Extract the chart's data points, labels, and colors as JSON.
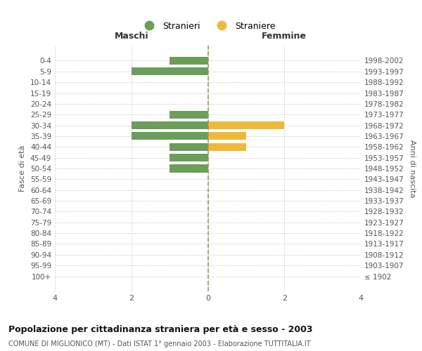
{
  "age_groups": [
    "0-4",
    "5-9",
    "10-14",
    "15-19",
    "20-24",
    "25-29",
    "30-34",
    "35-39",
    "40-44",
    "45-49",
    "50-54",
    "55-59",
    "60-64",
    "65-69",
    "70-74",
    "75-79",
    "80-84",
    "85-89",
    "90-94",
    "95-99",
    "100+"
  ],
  "birth_years": [
    "1998-2002",
    "1993-1997",
    "1988-1992",
    "1983-1987",
    "1978-1982",
    "1973-1977",
    "1968-1972",
    "1963-1967",
    "1958-1962",
    "1953-1957",
    "1948-1952",
    "1943-1947",
    "1938-1942",
    "1933-1937",
    "1928-1932",
    "1923-1927",
    "1918-1922",
    "1913-1917",
    "1908-1912",
    "1903-1907",
    "≤ 1902"
  ],
  "males": [
    1,
    2,
    0,
    0,
    0,
    1,
    2,
    2,
    1,
    1,
    1,
    0,
    0,
    0,
    0,
    0,
    0,
    0,
    0,
    0,
    0
  ],
  "females": [
    0,
    0,
    0,
    0,
    0,
    0,
    2,
    1,
    1,
    0,
    0,
    0,
    0,
    0,
    0,
    0,
    0,
    0,
    0,
    0,
    0
  ],
  "male_color": "#6a9e5a",
  "female_color": "#f0b83a",
  "xlim": 4,
  "title": "Popolazione per cittadinanza straniera per età e sesso - 2003",
  "subtitle": "COMUNE DI MIGLIONICO (MT) - Dati ISTAT 1° gennaio 2003 - Elaborazione TUTTITALIA.IT",
  "ylabel_left": "Fasce di età",
  "ylabel_right": "Anni di nascita",
  "legend_males": "Stranieri",
  "legend_females": "Straniere",
  "maschi_label": "Maschi",
  "femmine_label": "Femmine",
  "bg_color": "#ffffff",
  "grid_color": "#cccccc",
  "xticks": [
    -4,
    -2,
    0,
    2,
    4
  ],
  "xtick_labels": [
    "4",
    "2",
    "0",
    "2",
    "4"
  ]
}
